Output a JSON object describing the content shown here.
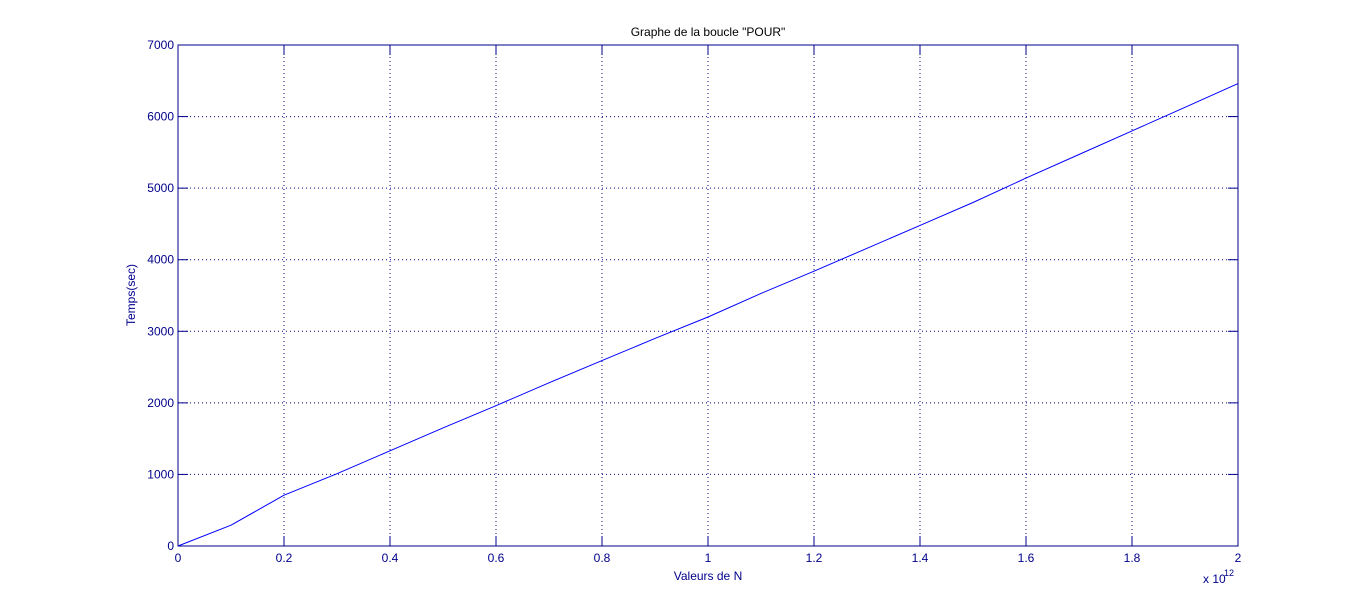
{
  "colors": {
    "axis": "#00008b",
    "line": "#0000ff",
    "grid": "#00008b",
    "title": "#000000",
    "background": "#ffffff"
  },
  "exponent": {
    "base": "x 10",
    "power": "12"
  },
  "chart_data": {
    "type": "line",
    "title": "Graphe de la boucle \"POUR\"",
    "xlabel": "Valeurs de N",
    "ylabel": "Temps(sec)",
    "x_scale_note": "x 10^12",
    "xlim": [
      0,
      2
    ],
    "ylim": [
      0,
      7000
    ],
    "xticks": [
      0,
      0.2,
      0.4,
      0.6,
      0.8,
      1,
      1.2,
      1.4,
      1.6,
      1.8,
      2
    ],
    "xtick_labels": [
      "0",
      "0.2",
      "0.4",
      "0.6",
      "0.8",
      "1",
      "1.2",
      "1.4",
      "1.6",
      "1.8",
      "2"
    ],
    "yticks": [
      0,
      1000,
      2000,
      3000,
      4000,
      5000,
      6000,
      7000
    ],
    "ytick_labels": [
      "0",
      "1000",
      "2000",
      "3000",
      "4000",
      "5000",
      "6000",
      "7000"
    ],
    "grid": true,
    "grid_style": "dotted",
    "series": [
      {
        "x": [
          0,
          0.1,
          0.2,
          0.3,
          0.4,
          0.5,
          0.6,
          0.7,
          0.8,
          0.9,
          1.0,
          1.1,
          1.2,
          1.3,
          1.4,
          1.5,
          1.6,
          1.7,
          1.8,
          1.9,
          2.0
        ],
        "values": [
          0,
          290,
          710,
          1010,
          1330,
          1650,
          1960,
          2280,
          2590,
          2900,
          3200,
          3530,
          3840,
          4160,
          4480,
          4800,
          5140,
          5470,
          5800,
          6130,
          6460
        ]
      }
    ]
  }
}
